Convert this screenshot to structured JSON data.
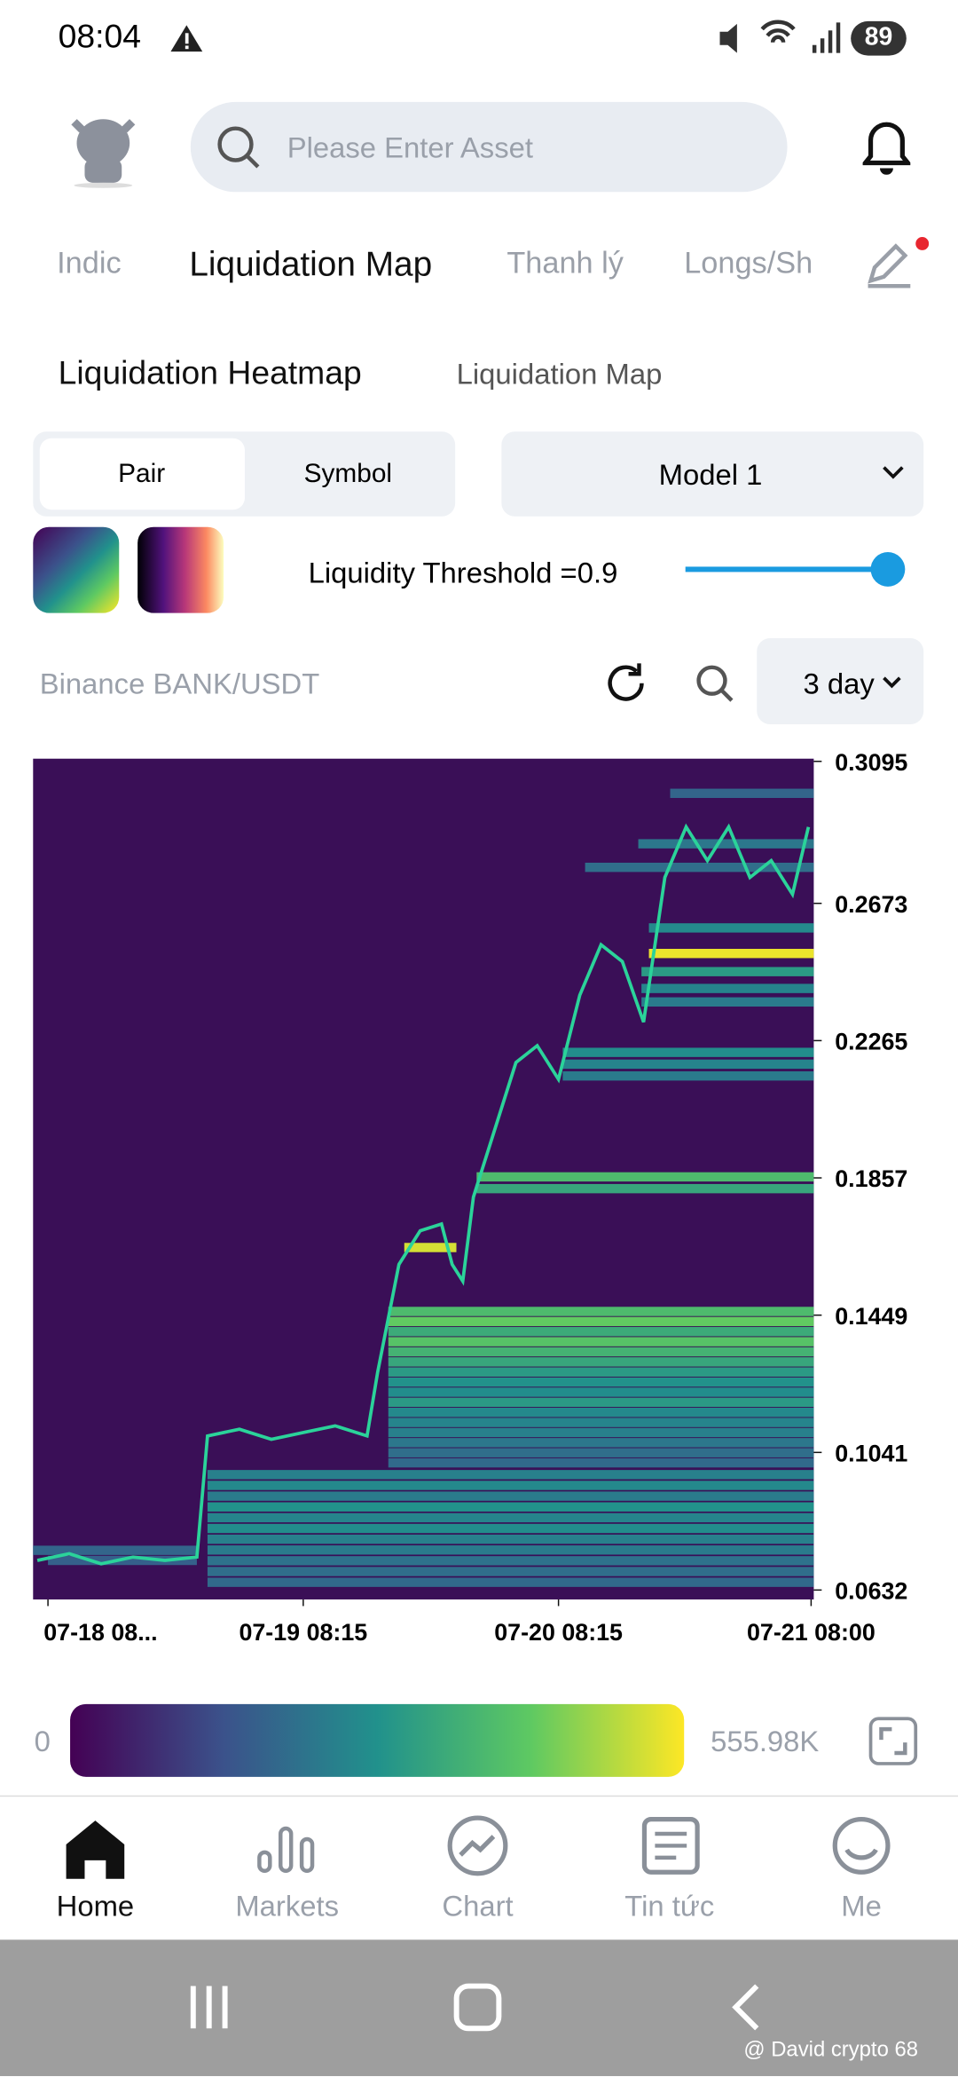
{
  "status_bar": {
    "time": "08:04",
    "battery": "89"
  },
  "search": {
    "placeholder": "Please Enter Asset"
  },
  "tabs": [
    "Indic",
    "Liquidation Map",
    "Thanh lý",
    "Longs/Sh"
  ],
  "sub_tabs": [
    "Liquidation Heatmap",
    "Liquidation Map"
  ],
  "segment": [
    "Pair",
    "Symbol"
  ],
  "model": "Model 1",
  "threshold": "Liquidity Threshold =0.9",
  "pair": "Binance BANK/USDT",
  "period": "3 day",
  "chart_data": {
    "type": "heatmap",
    "xlim": [
      -1.4,
      72
    ],
    "ylim": [
      0.0604,
      0.3103
    ],
    "yticks": [
      0.3095,
      0.2673,
      0.2265,
      0.1857,
      0.1449,
      0.1041,
      0.0632
    ],
    "xticks": [
      {
        "value": 0,
        "label": "07-18 08..."
      },
      {
        "value": 24,
        "label": "07-19 08:15"
      },
      {
        "value": 48,
        "label": "07-20 08:15"
      },
      {
        "value": 71.75,
        "label": "07-21 08:00"
      }
    ],
    "colorbar_ticks": [
      0,
      {
        "value": 555980,
        "label": "555.98K"
      }
    ],
    "bands": {
      "price": [
        0.3,
        0.285,
        0.278,
        0.26,
        0.2524,
        0.247,
        0.242,
        0.238,
        0.223,
        0.2195,
        0.216,
        0.186,
        0.1825,
        0.165,
        0.146,
        0.143,
        0.14,
        0.137,
        0.134,
        0.131,
        0.128,
        0.125,
        0.122,
        0.119,
        0.116,
        0.113,
        0.11,
        0.107,
        0.104,
        0.101,
        0.0975,
        0.0943,
        0.0911,
        0.0879,
        0.0847,
        0.0815,
        0.0783,
        0.0751,
        0.0719,
        0.0687,
        0.0655,
        0.075,
        0.072
      ],
      "start": [
        58.5,
        55.5,
        50.5,
        56.5,
        56.5,
        55.8,
        55.8,
        55.8,
        48.4,
        48.4,
        48.4,
        40.3,
        40.3,
        33.5,
        32,
        32,
        32,
        32,
        32,
        32,
        32,
        32,
        32,
        32,
        32,
        32,
        32,
        32,
        32,
        32,
        15,
        15,
        15,
        15,
        15,
        15,
        15,
        15,
        15,
        15,
        15,
        -1.4,
        0
      ],
      "end": [
        72,
        72,
        72,
        72,
        72,
        72,
        72,
        72,
        72,
        72,
        72,
        72,
        72,
        38.4,
        72,
        72,
        72,
        72,
        72,
        72,
        72,
        72,
        72,
        72,
        72,
        72,
        72,
        72,
        72,
        72,
        72,
        72,
        72,
        72,
        72,
        72,
        72,
        72,
        72,
        72,
        72,
        14,
        14
      ],
      "intensity": [
        180000,
        220000,
        200000,
        260000,
        540000,
        300000,
        250000,
        230000,
        270000,
        250000,
        230000,
        380000,
        330000,
        520000,
        380000,
        420000,
        340000,
        400000,
        360000,
        330000,
        300000,
        280000,
        270000,
        300000,
        260000,
        250000,
        240000,
        220000,
        200000,
        190000,
        240000,
        260000,
        230000,
        280000,
        250000,
        270000,
        240000,
        230000,
        210000,
        200000,
        190000,
        180000,
        170000
      ]
    },
    "price": {
      "color": "#2bd39a",
      "x": [
        -1,
        2,
        5,
        8,
        11,
        14,
        15,
        18,
        21,
        24,
        27,
        30,
        31,
        33,
        35,
        37,
        38,
        39,
        40,
        42,
        44,
        46,
        48,
        50,
        52,
        54,
        56,
        58,
        60,
        62,
        64,
        66,
        68,
        70,
        71.5
      ],
      "values": [
        0.072,
        0.074,
        0.071,
        0.073,
        0.072,
        0.073,
        0.109,
        0.111,
        0.108,
        0.11,
        0.112,
        0.109,
        0.128,
        0.16,
        0.17,
        0.172,
        0.16,
        0.155,
        0.18,
        0.2,
        0.22,
        0.225,
        0.215,
        0.24,
        0.255,
        0.25,
        0.232,
        0.275,
        0.29,
        0.28,
        0.29,
        0.275,
        0.28,
        0.27,
        0.29
      ]
    }
  },
  "nav": [
    "Home",
    "Markets",
    "Chart",
    "Tin tức",
    "Me"
  ],
  "watermark": "@ David crypto 68"
}
